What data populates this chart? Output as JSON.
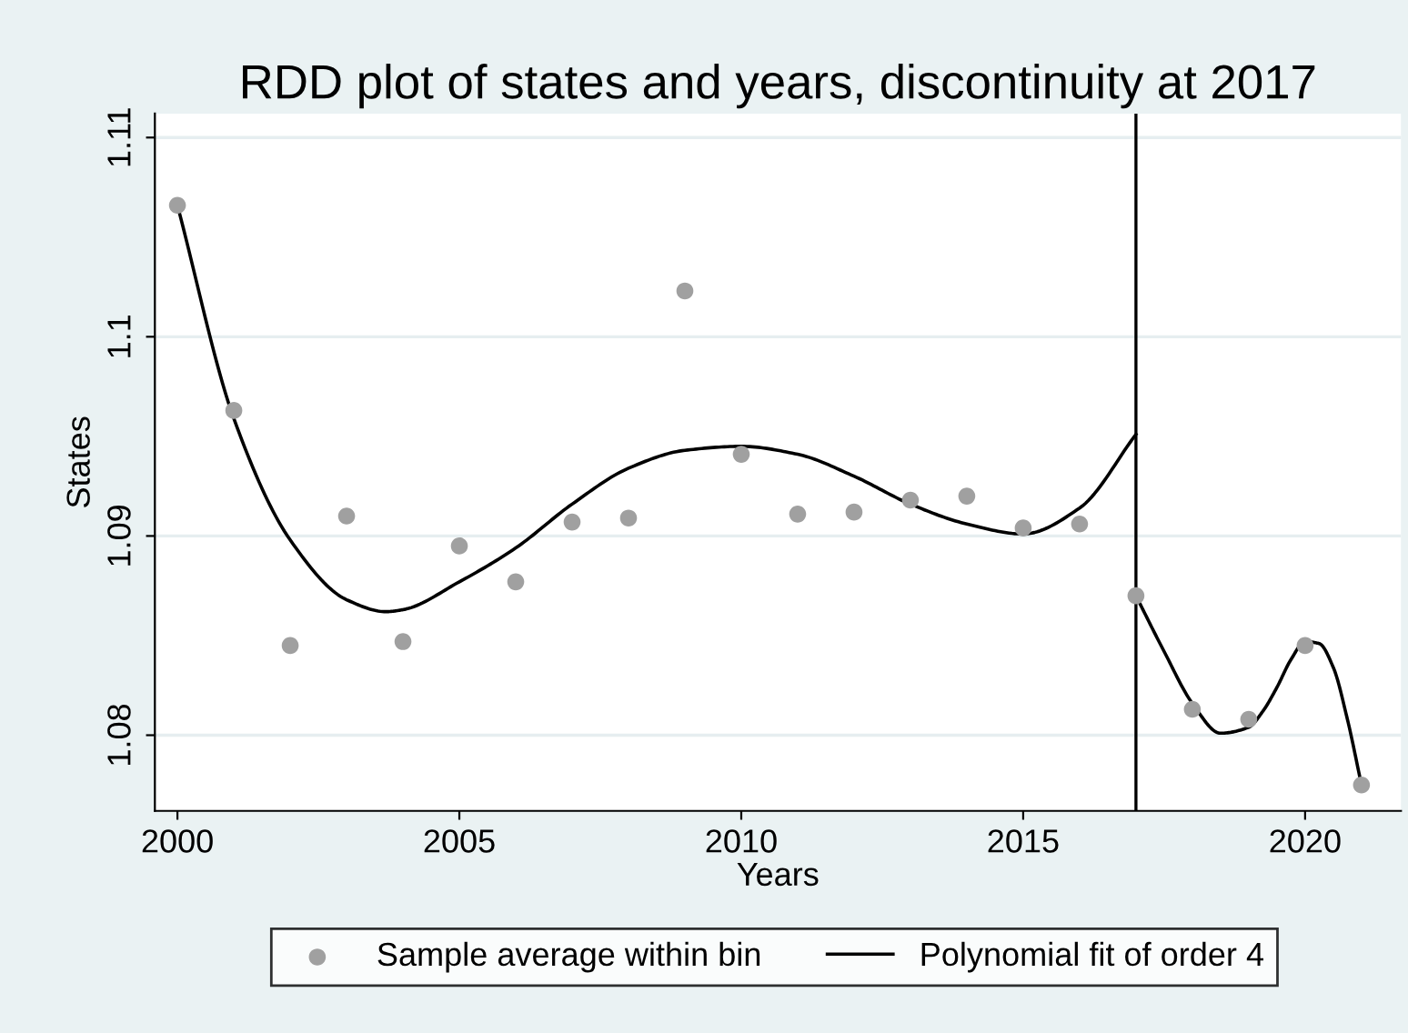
{
  "chart_data": {
    "type": "scatter",
    "title": "RDD plot of states and years, discontinuity at 2017",
    "xlabel": "Years",
    "ylabel": "States",
    "xlim": [
      1999.6,
      2021.7
    ],
    "ylim": [
      1.0762,
      1.1112
    ],
    "xticks": [
      2000,
      2005,
      2010,
      2015,
      2020
    ],
    "yticks": [
      1.08,
      1.09,
      1.1,
      1.11
    ],
    "grid": "y",
    "legend": "bottom",
    "series": [
      {
        "name": "Sample average within bin",
        "marker": "circle",
        "color": "#a0a0a0",
        "x": [
          2000,
          2001,
          2002,
          2003,
          2004,
          2005,
          2006,
          2007,
          2008,
          2009,
          2010,
          2011,
          2012,
          2013,
          2014,
          2015,
          2016,
          2017,
          2018,
          2019,
          2020,
          2021
        ],
        "values": [
          1.1066,
          1.0963,
          1.0845,
          1.091,
          1.0847,
          1.0895,
          1.0877,
          1.0907,
          1.0909,
          1.1023,
          1.0941,
          1.0911,
          1.0912,
          1.0918,
          1.092,
          1.0904,
          1.0906,
          1.087,
          1.0813,
          1.0808,
          1.0845,
          1.0775
        ]
      },
      {
        "name": "Polynomial fit of order 4",
        "type": "line",
        "color": "#000000",
        "x": [
          2000,
          2001,
          2002,
          2003,
          2003.7,
          2004,
          2005,
          2006,
          2007,
          2008,
          2009,
          2010,
          2011,
          2012,
          2013,
          2014,
          2015,
          2016,
          2017
        ],
        "values": [
          1.1066,
          1.0959,
          1.0898,
          1.0868,
          1.0862,
          1.0863,
          1.0877,
          1.0894,
          1.0916,
          1.0934,
          1.0943,
          1.0945,
          1.0941,
          1.093,
          1.0916,
          1.0906,
          1.0901,
          1.0914,
          1.0951
        ]
      },
      {
        "type": "line",
        "color": "#000000",
        "x": [
          2017,
          2017.5,
          2018,
          2018.5,
          2019,
          2019.25,
          2019.5,
          2019.75,
          2020,
          2020.25,
          2020.5,
          2020.75,
          2021
        ],
        "values": [
          1.087,
          1.0842,
          1.0816,
          1.0801,
          1.0804,
          1.0812,
          1.0824,
          1.0838,
          1.0847,
          1.0846,
          1.0834,
          1.0808,
          1.0775
        ]
      }
    ],
    "ref_lines": [
      {
        "axis": "x",
        "value": 2017,
        "color": "#000000"
      }
    ]
  }
}
